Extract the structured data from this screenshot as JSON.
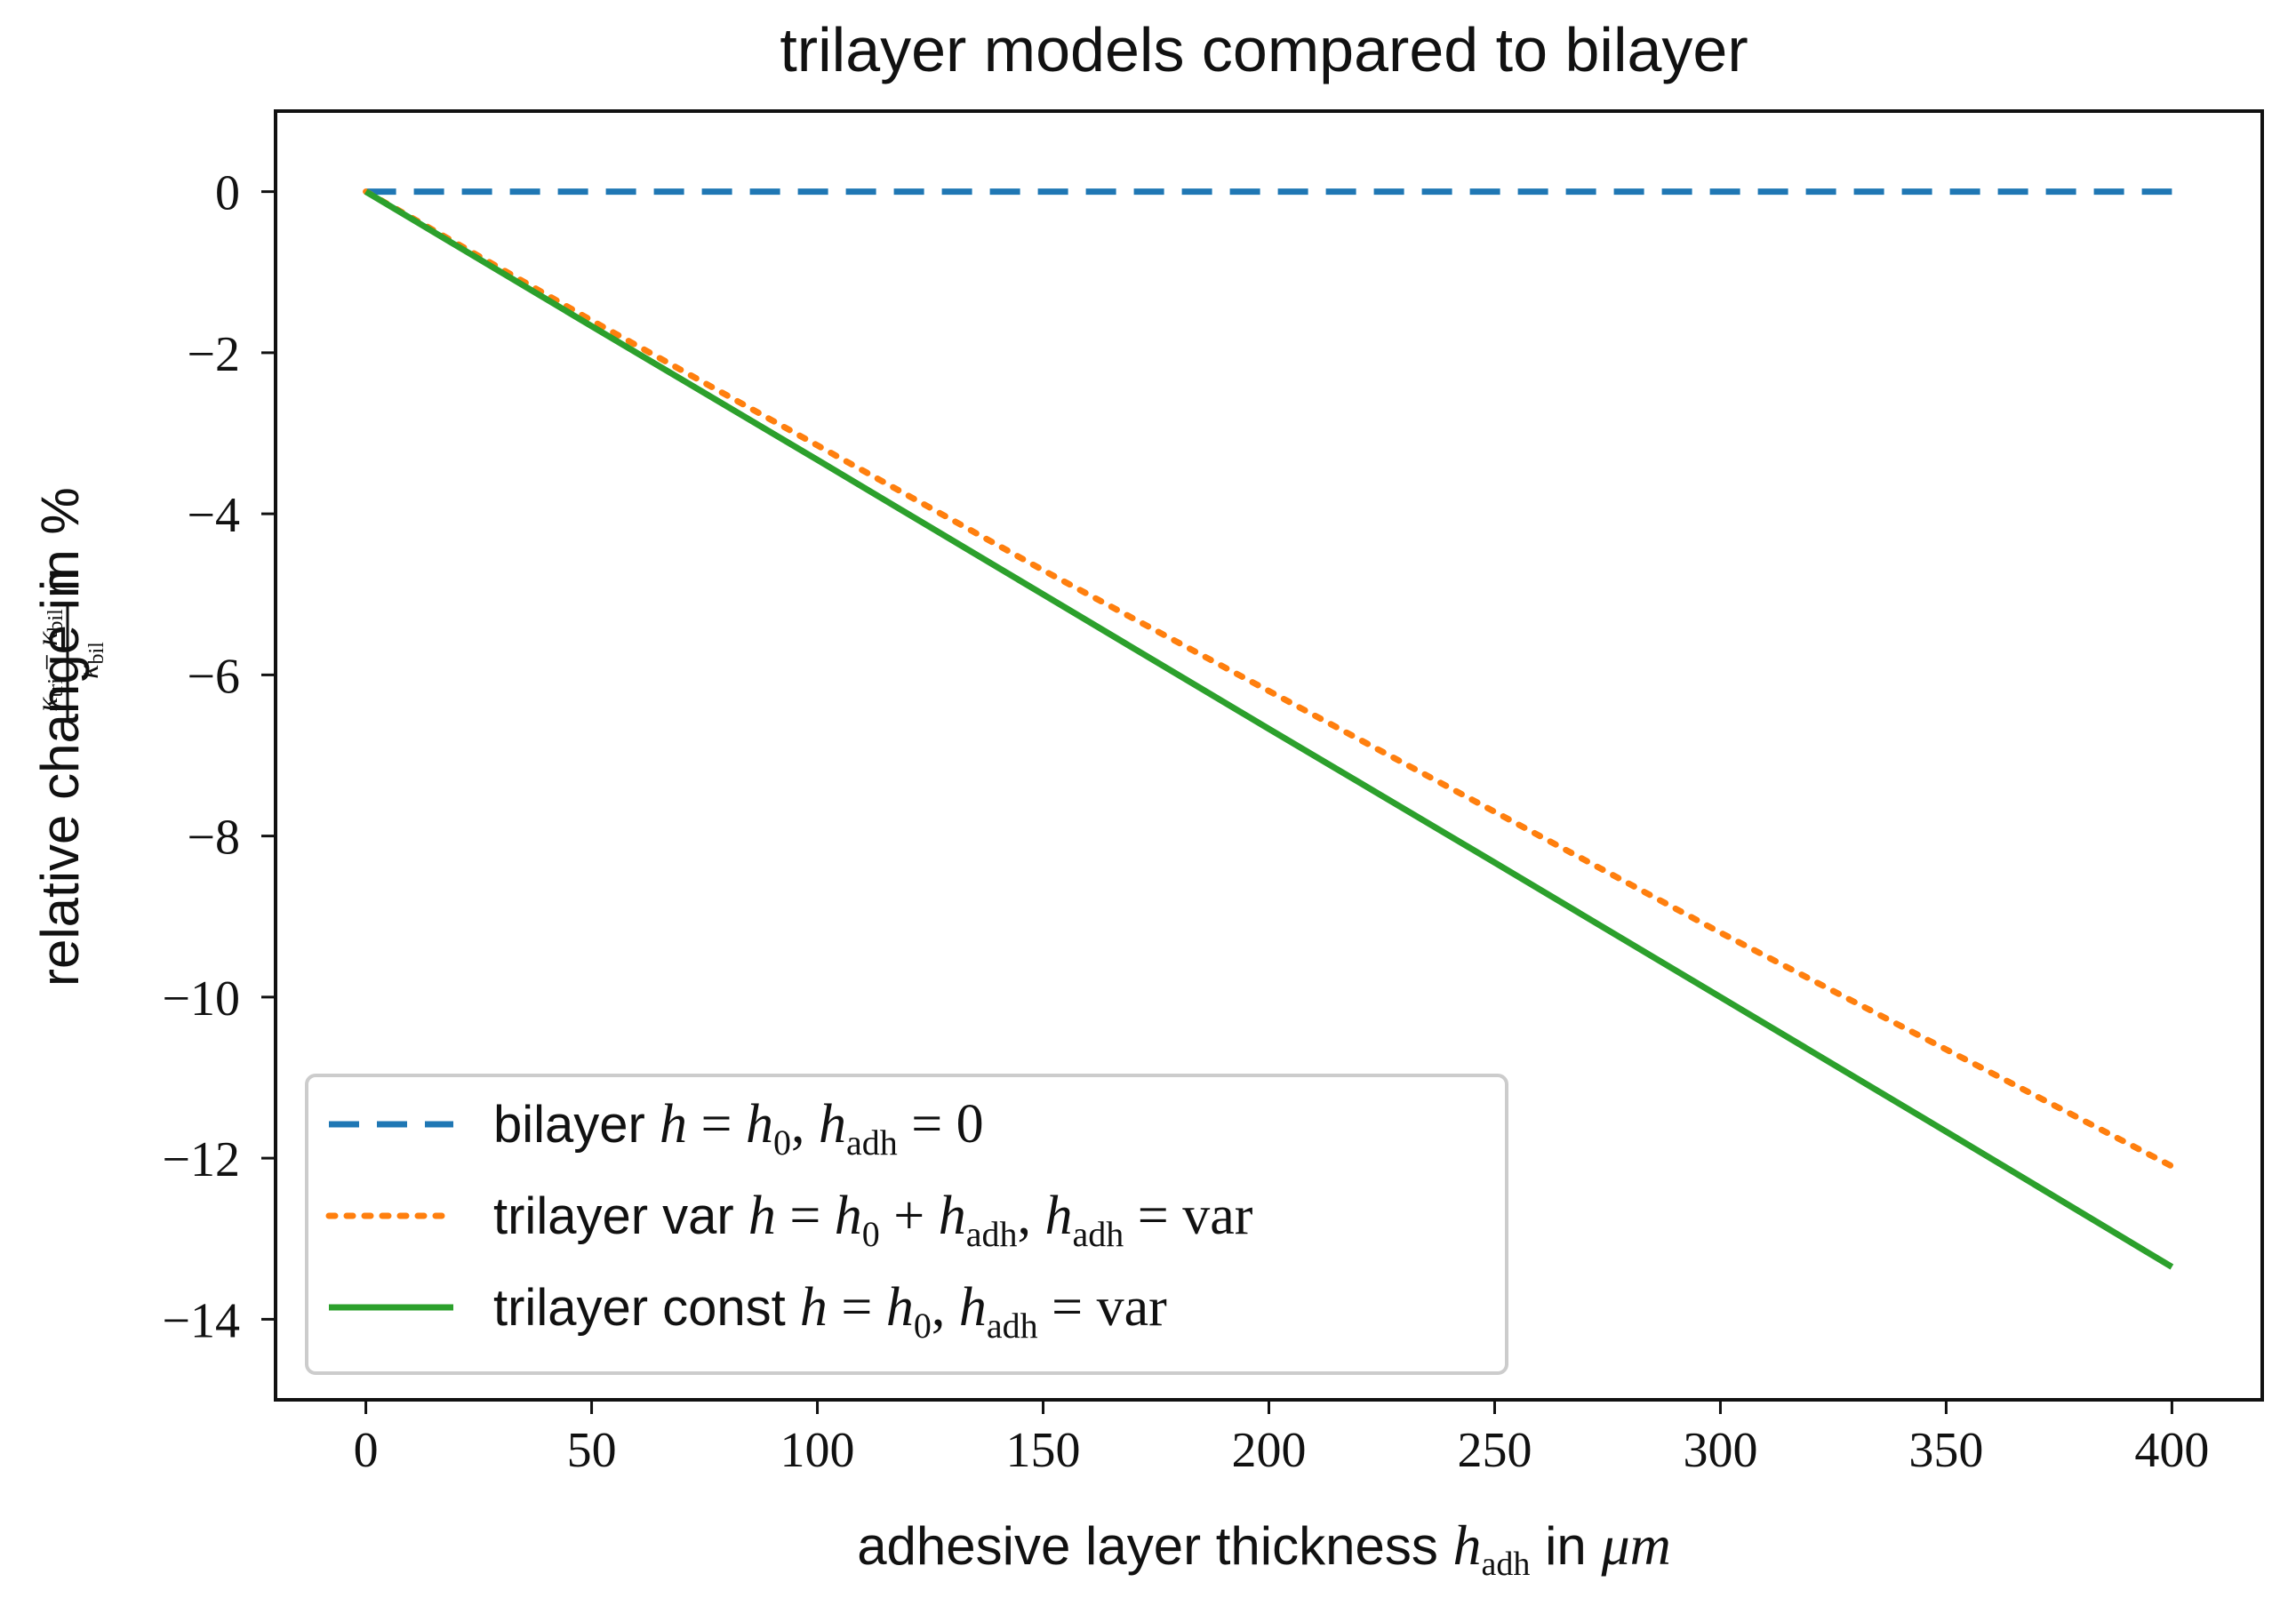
{
  "chart_data": {
    "type": "line",
    "title": "trilayer models compared to bilayer",
    "xlabel": {
      "text": "adhesive layer thickness ",
      "var": "h",
      "var_sub": "adh",
      "mid": " in ",
      "unit": "μm"
    },
    "ylabel": {
      "text": "relative change in ",
      "frac_num_a": "κ",
      "frac_num_a_sub": "tri",
      "frac_num_op": " − ",
      "frac_num_b": "κ",
      "frac_num_b_sub": "bil",
      "frac_den": "κ",
      "frac_den_sub": "bil",
      "suffix": " in %"
    },
    "xlim": [
      -20,
      420
    ],
    "ylim": [
      -15,
      1
    ],
    "xticks": [
      0,
      50,
      100,
      150,
      200,
      250,
      300,
      350,
      400
    ],
    "yticks": [
      0,
      -2,
      -4,
      -6,
      -8,
      -10,
      -12,
      -14
    ],
    "xtick_labels": [
      "0",
      "50",
      "100",
      "150",
      "200",
      "250",
      "300",
      "350",
      "400"
    ],
    "ytick_labels": [
      "0",
      "−2",
      "−4",
      "−6",
      "−8",
      "−10",
      "−12",
      "−14"
    ],
    "grid": false,
    "legend_position": "lower-left",
    "series": [
      {
        "name": "bilayer h = h0, hadh = 0",
        "style": "dashed",
        "color": "#1f77b4",
        "x": [
          0,
          400
        ],
        "y": [
          0,
          0
        ],
        "legend": {
          "prefix": "bilayer ",
          "parts": [
            {
              "t": "h",
              "i": true
            },
            {
              "t": " = "
            },
            {
              "t": "h",
              "i": true
            },
            {
              "t": "0",
              "sub": true
            },
            {
              "t": ", "
            },
            {
              "t": "h",
              "i": true
            },
            {
              "t": "adh",
              "sub": true
            },
            {
              "t": " = 0"
            }
          ]
        }
      },
      {
        "name": "trilayer var h = h0 + hadh, hadh = var",
        "style": "dotted",
        "color": "#ff7f0e",
        "x": [
          0,
          50,
          100,
          150,
          200,
          250,
          300,
          350,
          400
        ],
        "y": [
          0,
          -1.6,
          -3.15,
          -4.7,
          -6.2,
          -7.7,
          -9.2,
          -10.65,
          -12.1
        ],
        "legend": {
          "prefix": "trilayer var ",
          "parts": [
            {
              "t": "h",
              "i": true
            },
            {
              "t": " = "
            },
            {
              "t": "h",
              "i": true
            },
            {
              "t": "0",
              "sub": true
            },
            {
              "t": " + "
            },
            {
              "t": "h",
              "i": true
            },
            {
              "t": "adh",
              "sub": true
            },
            {
              "t": ", "
            },
            {
              "t": "h",
              "i": true
            },
            {
              "t": "adh",
              "sub": true
            },
            {
              "t": " = var"
            }
          ]
        }
      },
      {
        "name": "trilayer const h = h0, hadh = var",
        "style": "solid",
        "color": "#2ca02c",
        "x": [
          0,
          50,
          100,
          150,
          200,
          250,
          300,
          350,
          400
        ],
        "y": [
          0,
          -1.67,
          -3.33,
          -5.0,
          -6.67,
          -8.33,
          -10.0,
          -11.67,
          -13.35
        ],
        "legend": {
          "prefix": "trilayer const ",
          "parts": [
            {
              "t": "h",
              "i": true
            },
            {
              "t": " = "
            },
            {
              "t": "h",
              "i": true
            },
            {
              "t": "0",
              "sub": true
            },
            {
              "t": ", "
            },
            {
              "t": "h",
              "i": true
            },
            {
              "t": "adh",
              "sub": true
            },
            {
              "t": " = var"
            }
          ]
        }
      }
    ]
  }
}
